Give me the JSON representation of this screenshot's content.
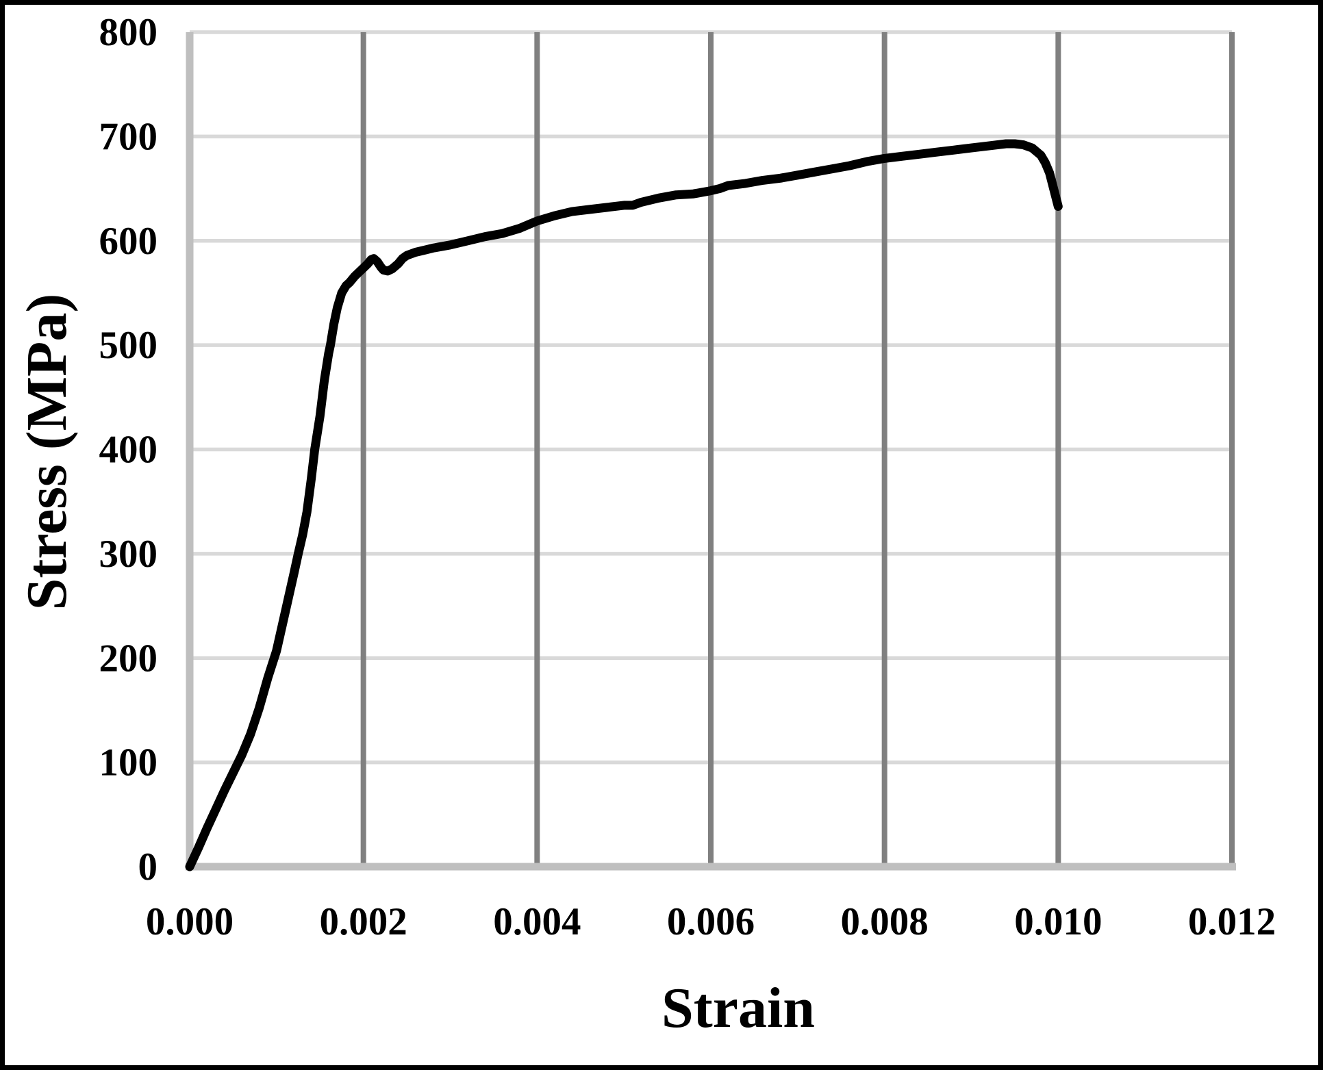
{
  "chart_data": {
    "type": "line",
    "title": "",
    "xlabel": "Strain",
    "ylabel": "Stress (MPa)",
    "xlim": [
      0,
      0.012
    ],
    "ylim": [
      0,
      800
    ],
    "x_ticks": [
      0,
      0.002,
      0.004,
      0.006,
      0.008,
      0.01,
      0.012
    ],
    "x_tick_labels": [
      "0.000",
      "0.002",
      "0.004",
      "0.006",
      "0.008",
      "0.010",
      "0.012"
    ],
    "y_ticks": [
      0,
      100,
      200,
      300,
      400,
      500,
      600,
      700,
      800
    ],
    "y_tick_labels": [
      "0",
      "100",
      "200",
      "300",
      "400",
      "500",
      "600",
      "700",
      "800"
    ],
    "grid": "on",
    "legend_position": "none",
    "series": [
      {
        "name": "stress-strain curve",
        "color": "#000000",
        "points": [
          [
            0.0,
            0
          ],
          [
            0.0001,
            18
          ],
          [
            0.0002,
            37
          ],
          [
            0.0003,
            55
          ],
          [
            0.0004,
            73
          ],
          [
            0.0005,
            90
          ],
          [
            0.0006,
            107
          ],
          [
            0.0007,
            127
          ],
          [
            0.0008,
            152
          ],
          [
            0.0009,
            181
          ],
          [
            0.001,
            207
          ],
          [
            0.0011,
            244
          ],
          [
            0.0012,
            281
          ],
          [
            0.00125,
            300
          ],
          [
            0.0013,
            318
          ],
          [
            0.00135,
            340
          ],
          [
            0.0014,
            372
          ],
          [
            0.00144,
            400
          ],
          [
            0.0015,
            432
          ],
          [
            0.00155,
            466
          ],
          [
            0.0016,
            492
          ],
          [
            0.00162,
            500
          ],
          [
            0.00166,
            520
          ],
          [
            0.0017,
            536
          ],
          [
            0.00175,
            550
          ],
          [
            0.0018,
            557
          ],
          [
            0.00184,
            560
          ],
          [
            0.0019,
            566
          ],
          [
            0.00195,
            570
          ],
          [
            0.002,
            574
          ],
          [
            0.00205,
            578
          ],
          [
            0.00209,
            582
          ],
          [
            0.00212,
            583
          ],
          [
            0.00216,
            580
          ],
          [
            0.0022,
            575
          ],
          [
            0.00223,
            572
          ],
          [
            0.00228,
            571
          ],
          [
            0.00233,
            573
          ],
          [
            0.0024,
            578
          ],
          [
            0.00245,
            583
          ],
          [
            0.0025,
            586
          ],
          [
            0.0026,
            589
          ],
          [
            0.0027,
            591
          ],
          [
            0.0028,
            593
          ],
          [
            0.003,
            596
          ],
          [
            0.0032,
            600
          ],
          [
            0.0034,
            604
          ],
          [
            0.0036,
            607
          ],
          [
            0.0038,
            612
          ],
          [
            0.004,
            619
          ],
          [
            0.0042,
            624
          ],
          [
            0.0044,
            628
          ],
          [
            0.0046,
            630
          ],
          [
            0.0048,
            632
          ],
          [
            0.005,
            634
          ],
          [
            0.0051,
            634
          ],
          [
            0.0052,
            637
          ],
          [
            0.0054,
            641
          ],
          [
            0.0056,
            644
          ],
          [
            0.0058,
            645
          ],
          [
            0.006,
            648
          ],
          [
            0.0061,
            650
          ],
          [
            0.0062,
            653
          ],
          [
            0.0064,
            655
          ],
          [
            0.0066,
            658
          ],
          [
            0.0068,
            660
          ],
          [
            0.007,
            663
          ],
          [
            0.0072,
            666
          ],
          [
            0.0074,
            669
          ],
          [
            0.0076,
            672
          ],
          [
            0.0078,
            676
          ],
          [
            0.008,
            679
          ],
          [
            0.0082,
            681
          ],
          [
            0.0084,
            683
          ],
          [
            0.0086,
            685
          ],
          [
            0.0088,
            687
          ],
          [
            0.009,
            689
          ],
          [
            0.0092,
            691
          ],
          [
            0.0094,
            693
          ],
          [
            0.0095,
            693
          ],
          [
            0.0096,
            692
          ],
          [
            0.0097,
            689
          ],
          [
            0.0098,
            682
          ],
          [
            0.00985,
            675
          ],
          [
            0.0099,
            665
          ],
          [
            0.00995,
            649
          ],
          [
            0.01,
            633
          ]
        ]
      }
    ]
  },
  "colors": {
    "background": "#ffffff",
    "frame_border": "#000000",
    "gridline_horizontal": "#d9d9d9",
    "gridline_vertical": "#808080",
    "axis_line": "#bfbfbf",
    "curve": "#000000",
    "text": "#000000"
  }
}
